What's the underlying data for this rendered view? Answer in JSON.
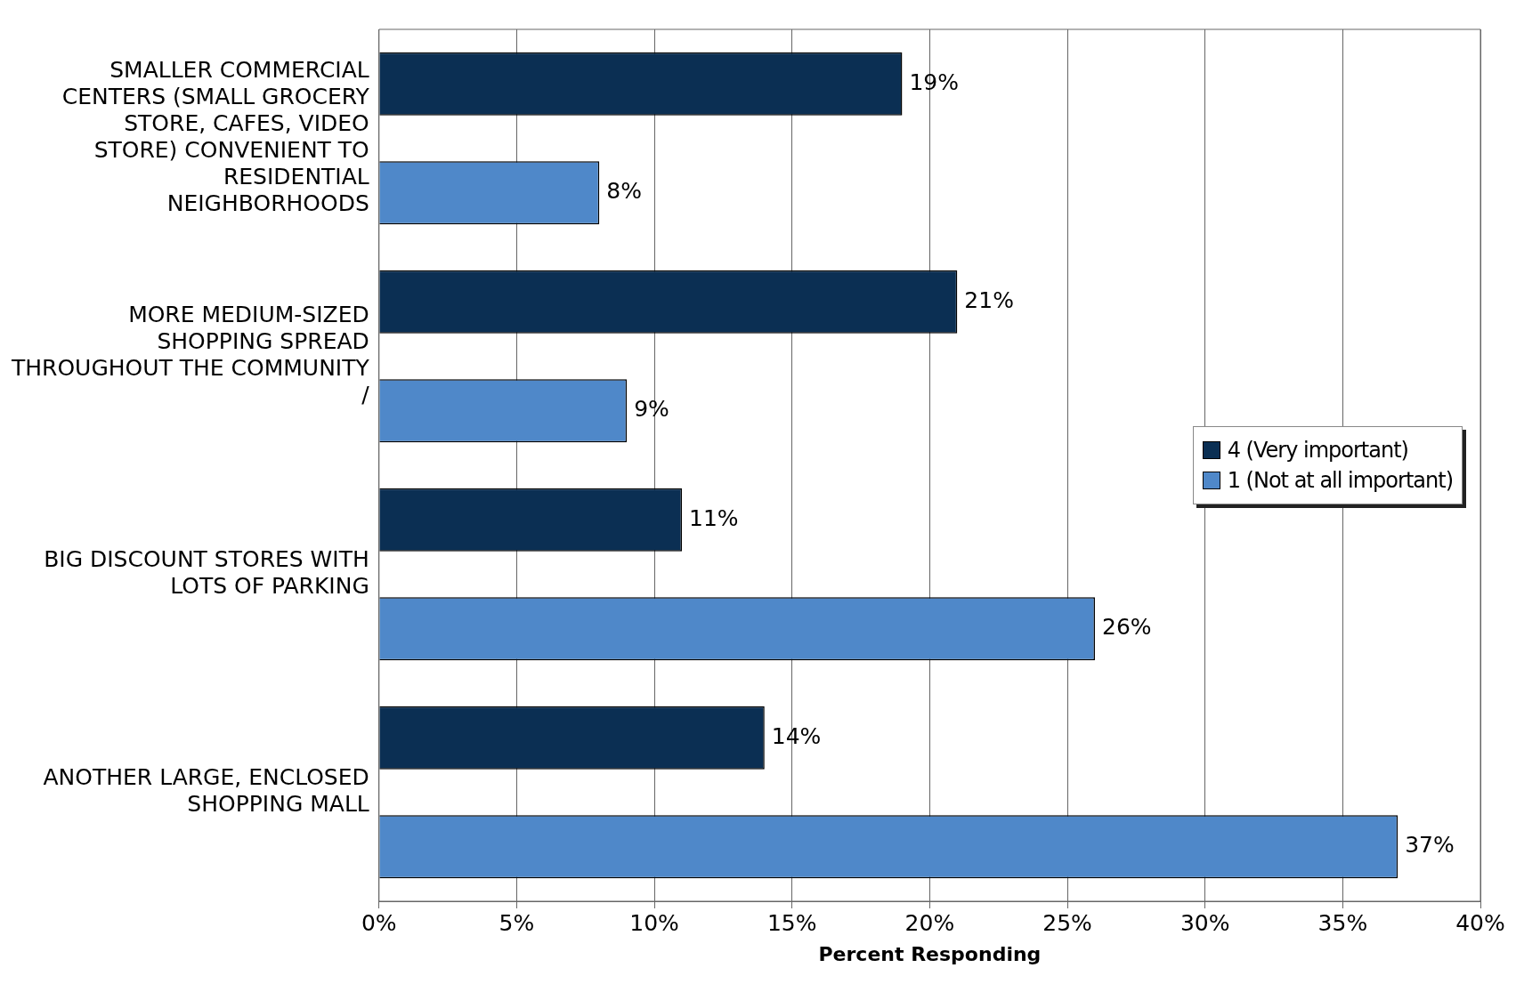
{
  "chart_data": {
    "type": "bar",
    "orientation": "horizontal",
    "xlabel": "Percent Responding",
    "categories": [
      "SMALLER COMMERCIAL CENTERS (SMALL GROCERY STORE, CAFES, VIDEO STORE) CONVENIENT TO RESIDENTIAL NEIGHBORHOODS",
      "MORE MEDIUM-SIZED SHOPPING SPREAD THROUGHOUT THE COMMUNITY /",
      "BIG DISCOUNT STORES WITH LOTS OF PARKING",
      "ANOTHER LARGE, ENCLOSED SHOPPING MALL"
    ],
    "series": [
      {
        "name": "4 (Very important)",
        "color": "#0b2f53",
        "values": [
          19,
          21,
          11,
          14
        ],
        "value_labels": [
          "19%",
          "21%",
          "11%",
          "14%"
        ]
      },
      {
        "name": "1 (Not at all important)",
        "color": "#4f88c9",
        "values": [
          8,
          9,
          26,
          37
        ],
        "value_labels": [
          "8%",
          "9%",
          "26%",
          "37%"
        ]
      }
    ],
    "xlim": [
      0,
      40
    ],
    "xticks": [
      {
        "value": 0,
        "label": "0%"
      },
      {
        "value": 5,
        "label": "5%"
      },
      {
        "value": 10,
        "label": "10%"
      },
      {
        "value": 15,
        "label": "15%"
      },
      {
        "value": 20,
        "label": "20%"
      },
      {
        "value": 25,
        "label": "25%"
      },
      {
        "value": 30,
        "label": "30%"
      },
      {
        "value": 35,
        "label": "35%"
      },
      {
        "value": 40,
        "label": "40%"
      }
    ],
    "grid": "x",
    "legend": "right"
  }
}
